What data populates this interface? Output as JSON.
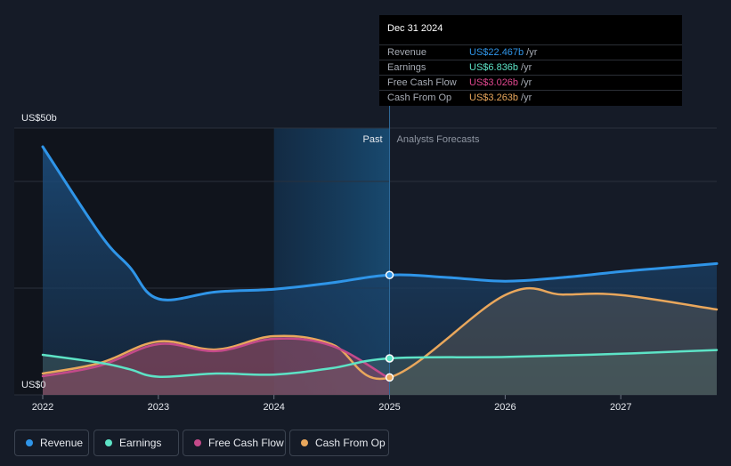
{
  "chart_data": {
    "type": "area",
    "y_axis_top_label": "US$50b",
    "y_axis_bottom_label": "US$0",
    "ylim": [
      0,
      50
    ],
    "xlim": [
      2022,
      2027.83
    ],
    "x_ticks": [
      "2022",
      "2023",
      "2024",
      "2025",
      "2026",
      "2027"
    ],
    "x_tick_values": [
      2022,
      2023,
      2024,
      2025,
      2026,
      2027
    ],
    "divider_x": 2025.0,
    "highlight_from": 2024.0,
    "past_label": "Past",
    "forecast_label": "Analysts Forecasts",
    "series": [
      {
        "name": "Revenue",
        "color": "#2f95e8",
        "x": [
          2022,
          2022.5,
          2022.75,
          2023,
          2023.5,
          2024,
          2024.5,
          2025,
          2025.5,
          2026,
          2026.5,
          2027,
          2027.5,
          2027.83
        ],
        "values": [
          46.5,
          30,
          24,
          18,
          19.3,
          19.8,
          21,
          22.467,
          22,
          21.3,
          22,
          23.1,
          24,
          24.6
        ]
      },
      {
        "name": "Earnings",
        "color": "#5de3c6",
        "x": [
          2022,
          2022.5,
          2022.75,
          2023,
          2023.5,
          2024,
          2024.5,
          2025,
          2026,
          2027,
          2027.83
        ],
        "values": [
          7.5,
          6,
          4.8,
          3.4,
          4,
          3.8,
          5,
          6.836,
          7.1,
          7.7,
          8.4
        ]
      },
      {
        "name": "Free Cash Flow",
        "color": "#c44a8a",
        "x": [
          2022,
          2022.5,
          2023,
          2023.5,
          2024,
          2024.5,
          2025
        ],
        "values": [
          3.5,
          5.5,
          9.5,
          8.2,
          10.5,
          9.2,
          3.026
        ]
      },
      {
        "name": "Cash From Op",
        "color": "#e9a75c",
        "x": [
          2022,
          2022.5,
          2023,
          2023.5,
          2024,
          2024.5,
          2025,
          2026,
          2026.5,
          2027,
          2027.83
        ],
        "values": [
          4,
          6,
          10,
          8.5,
          11,
          9.5,
          3.263,
          18.7,
          18.8,
          18.7,
          16
        ]
      }
    ]
  },
  "tooltip": {
    "date": "Dec 31 2024",
    "rows": [
      {
        "name": "Revenue",
        "value": "US$22.467b",
        "unit": "/yr",
        "color": "#2f95e8"
      },
      {
        "name": "Earnings",
        "value": "US$6.836b",
        "unit": "/yr",
        "color": "#5de3c6"
      },
      {
        "name": "Free Cash Flow",
        "value": "US$3.026b",
        "unit": "/yr",
        "color": "#e0478f"
      },
      {
        "name": "Cash From Op",
        "value": "US$3.263b",
        "unit": "/yr",
        "color": "#e9a75c"
      }
    ]
  },
  "legend": [
    {
      "label": "Revenue",
      "color": "#2f95e8"
    },
    {
      "label": "Earnings",
      "color": "#5de3c6"
    },
    {
      "label": "Free Cash Flow",
      "color": "#c44a8a"
    },
    {
      "label": "Cash From Op",
      "color": "#e9a75c"
    }
  ]
}
